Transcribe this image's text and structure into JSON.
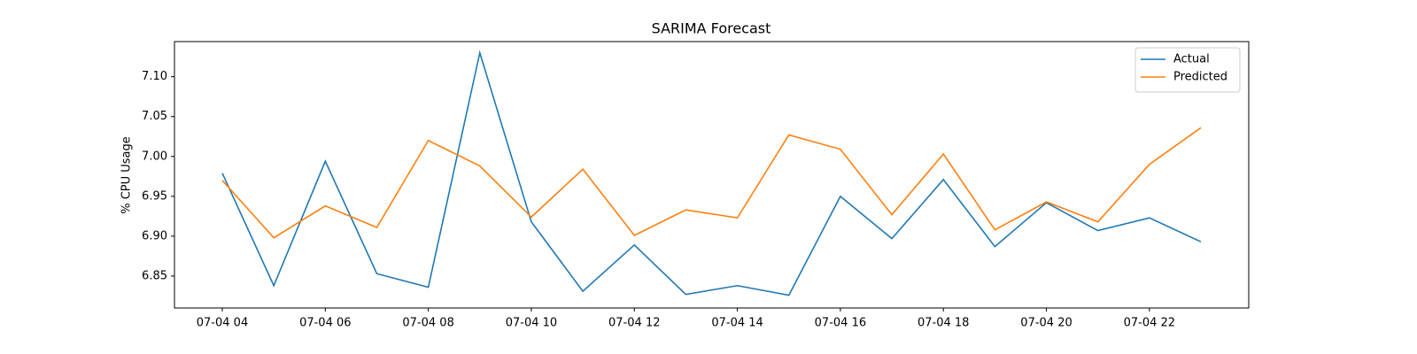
{
  "chart_data": {
    "type": "line",
    "title": "SARIMA Forecast",
    "y_label": "% CPU Usage",
    "categories": [
      "07-04 04",
      null,
      "07-04 06",
      null,
      "07-04 08",
      null,
      "07-04 10",
      null,
      "07-04 12",
      null,
      "07-04 14",
      null,
      "07-04 16",
      null,
      "07-04 18",
      null,
      "07-04 20",
      null,
      "07-04 22",
      null
    ],
    "series": [
      {
        "name": "Actual",
        "color": "#1f77b4",
        "values": [
          6.979,
          6.838,
          6.994,
          6.853,
          6.836,
          7.13,
          6.918,
          6.831,
          6.889,
          6.827,
          6.838,
          6.826,
          6.95,
          6.897,
          6.971,
          6.887,
          6.942,
          6.907,
          6.923,
          6.893
        ]
      },
      {
        "name": "Predicted",
        "color": "#ff7f0e",
        "values": [
          6.97,
          6.898,
          6.938,
          6.911,
          7.02,
          6.988,
          6.924,
          6.984,
          6.901,
          6.933,
          6.923,
          7.027,
          7.009,
          6.927,
          7.003,
          6.908,
          6.943,
          6.918,
          6.99,
          7.036
        ]
      }
    ],
    "ylim": [
      6.81,
      7.144
    ],
    "yticks": [
      6.85,
      {
        "value": 6.9,
        "label": "6.90"
      },
      6.95,
      {
        "value": 7.0,
        "label": "7.00"
      },
      7.05,
      {
        "value": 7.1,
        "label": "7.10"
      }
    ],
    "grid": false,
    "legend": "upper right"
  }
}
